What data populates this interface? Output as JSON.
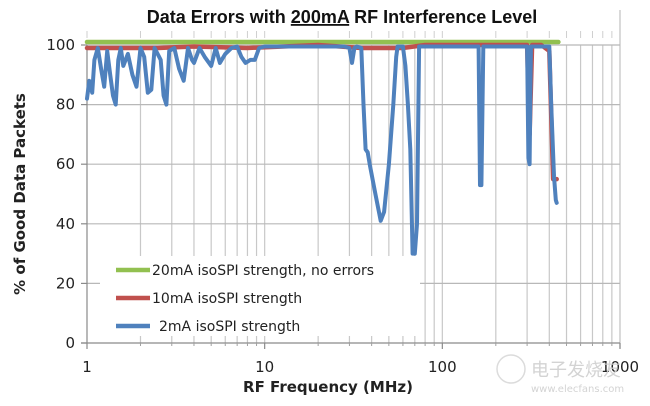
{
  "chart_data": {
    "type": "line",
    "title_parts": [
      "Data Errors with ",
      "200mA",
      " RF Interference Level"
    ],
    "title": "Data Errors with 200mA RF Interference Level",
    "xlabel": "RF Frequency (MHz)",
    "ylabel": "% of Good Data Packets",
    "xscale": "log",
    "xlim": [
      1,
      1000
    ],
    "ylim": [
      0,
      100
    ],
    "x_ticks": [
      1,
      10,
      100,
      1000
    ],
    "x_tick_labels": [
      "1",
      "10",
      "100",
      "1000"
    ],
    "y_ticks": [
      0,
      20,
      40,
      60,
      80,
      100
    ],
    "y_tick_labels": [
      "0",
      "20",
      "40",
      "60",
      "80",
      "100"
    ],
    "grid": true,
    "legend_position": "bottom-left",
    "series": [
      {
        "name": "20mA isoSPI strength, no errors",
        "color": "#92c050",
        "points": [
          [
            1,
            101
          ],
          [
            450,
            101
          ]
        ]
      },
      {
        "name": "10mA isoSPI strength",
        "color": "#c0504d",
        "points": [
          [
            1,
            99
          ],
          [
            2.5,
            99
          ],
          [
            4,
            99.5
          ],
          [
            8,
            99
          ],
          [
            20,
            100
          ],
          [
            35,
            99
          ],
          [
            60,
            99
          ],
          [
            80,
            100
          ],
          [
            300,
            100
          ],
          [
            310,
            70
          ],
          [
            320,
            100
          ],
          [
            360,
            100
          ],
          [
            400,
            98
          ],
          [
            420,
            55
          ],
          [
            440,
            55
          ]
        ]
      },
      {
        "name": "2mA isoSPI strength",
        "color": "#4f81bd",
        "points": [
          [
            1.0,
            82
          ],
          [
            1.03,
            88
          ],
          [
            1.07,
            84
          ],
          [
            1.1,
            95
          ],
          [
            1.15,
            99
          ],
          [
            1.2,
            92
          ],
          [
            1.25,
            86
          ],
          [
            1.3,
            98
          ],
          [
            1.35,
            90
          ],
          [
            1.4,
            83
          ],
          [
            1.45,
            80
          ],
          [
            1.5,
            95
          ],
          [
            1.55,
            99
          ],
          [
            1.6,
            93
          ],
          [
            1.7,
            97
          ],
          [
            1.8,
            90
          ],
          [
            1.9,
            86
          ],
          [
            2.0,
            99
          ],
          [
            2.1,
            96
          ],
          [
            2.2,
            84
          ],
          [
            2.3,
            85
          ],
          [
            2.4,
            99
          ],
          [
            2.6,
            95
          ],
          [
            2.7,
            83
          ],
          [
            2.8,
            80
          ],
          [
            2.9,
            98
          ],
          [
            3.1,
            99
          ],
          [
            3.3,
            92
          ],
          [
            3.5,
            88
          ],
          [
            3.7,
            99
          ],
          [
            3.9,
            95
          ],
          [
            4.0,
            94
          ],
          [
            4.3,
            99
          ],
          [
            4.6,
            96
          ],
          [
            5.0,
            93
          ],
          [
            5.3,
            99
          ],
          [
            5.6,
            94
          ],
          [
            6.0,
            97
          ],
          [
            6.5,
            99
          ],
          [
            7.0,
            99.5
          ],
          [
            7.4,
            96
          ],
          [
            7.8,
            94
          ],
          [
            8.3,
            95
          ],
          [
            8.8,
            95
          ],
          [
            9.3,
            99
          ],
          [
            10,
            99.5
          ],
          [
            20,
            99.5
          ],
          [
            28,
            99.5
          ],
          [
            30,
            99
          ],
          [
            31,
            94
          ],
          [
            32,
            99
          ],
          [
            33,
            99.5
          ],
          [
            35,
            99
          ],
          [
            36,
            80
          ],
          [
            37,
            65
          ],
          [
            38,
            64
          ],
          [
            39,
            60
          ],
          [
            42,
            50
          ],
          [
            45,
            41
          ],
          [
            47,
            44
          ],
          [
            50,
            60
          ],
          [
            53,
            80
          ],
          [
            55,
            96
          ],
          [
            56,
            99.5
          ],
          [
            60,
            99.5
          ],
          [
            62,
            93
          ],
          [
            64,
            80
          ],
          [
            66,
            65
          ],
          [
            68,
            30
          ],
          [
            70,
            30
          ],
          [
            72,
            40
          ],
          [
            74,
            99.5
          ],
          [
            76,
            99.5
          ],
          [
            160,
            99.5
          ],
          [
            163,
            53
          ],
          [
            166,
            53
          ],
          [
            170,
            99.5
          ],
          [
            300,
            99.5
          ],
          [
            305,
            62
          ],
          [
            310,
            60
          ],
          [
            315,
            99.5
          ],
          [
            400,
            99.5
          ],
          [
            410,
            80
          ],
          [
            425,
            56
          ],
          [
            435,
            48
          ],
          [
            440,
            47
          ]
        ]
      }
    ]
  },
  "watermark": {
    "text_cn": "电子发烧友",
    "url": "www.elecfans.com"
  }
}
